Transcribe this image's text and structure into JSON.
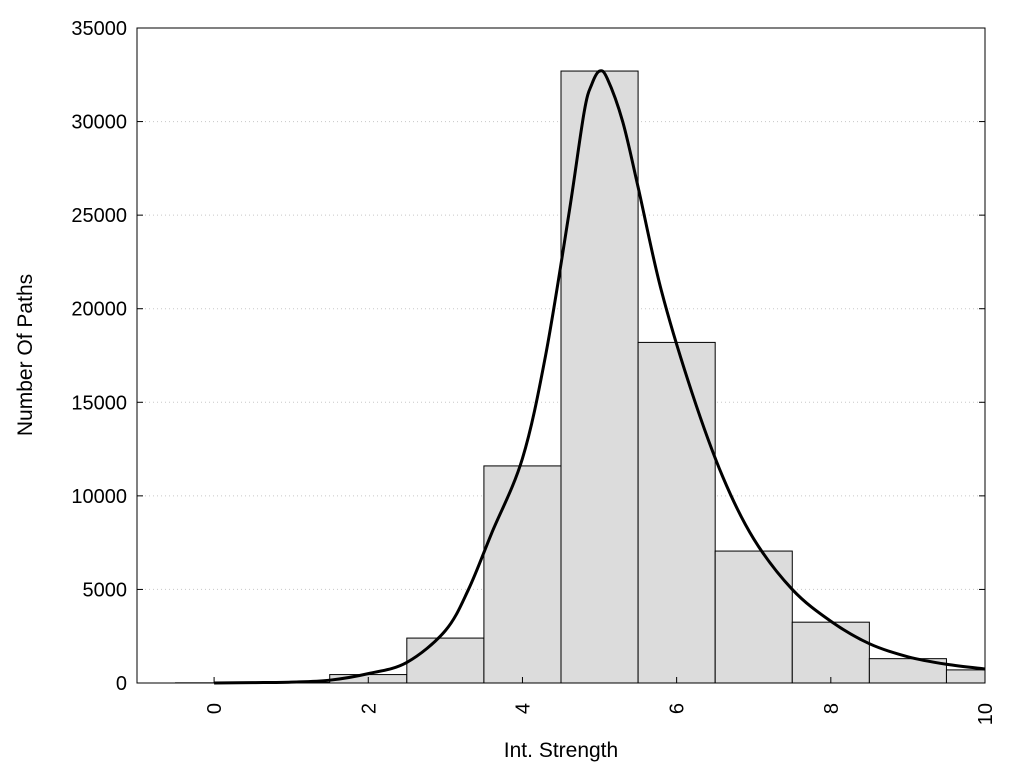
{
  "chart_data": {
    "type": "bar",
    "title": "",
    "xlabel": "Int. Strength",
    "ylabel": "Number Of Paths",
    "xlim": [
      -1,
      10
    ],
    "ylim": [
      0,
      35000
    ],
    "x_ticks": [
      0,
      2,
      4,
      6,
      8,
      10
    ],
    "y_ticks": [
      0,
      5000,
      10000,
      15000,
      20000,
      25000,
      30000,
      35000
    ],
    "grid": "horizontal-dotted",
    "legend": "none",
    "colors": {
      "bar_fill": "#dcdcdc",
      "bar_stroke": "#000000",
      "curve": "#000000",
      "grid": "#c8c8c8"
    },
    "bins": {
      "x": [
        0,
        1,
        2,
        3,
        4,
        5,
        6,
        7,
        8,
        9,
        10
      ],
      "values": [
        10,
        30,
        450,
        2400,
        11600,
        32700,
        18200,
        7050,
        3250,
        1300,
        700
      ]
    },
    "curve": {
      "x": [
        0,
        0.5,
        1,
        1.5,
        2,
        2.5,
        3,
        3.3,
        3.6,
        4,
        4.3,
        4.6,
        4.8,
        4.9,
        5,
        5.1,
        5.3,
        5.5,
        5.8,
        6.2,
        6.6,
        7,
        7.5,
        8,
        8.5,
        9,
        9.5,
        10
      ],
      "y": [
        0,
        20,
        50,
        150,
        500,
        1100,
        2800,
        5000,
        8000,
        12000,
        17500,
        25000,
        30500,
        32000,
        32700,
        32300,
        30000,
        26500,
        21000,
        15500,
        11000,
        7700,
        5000,
        3300,
        2100,
        1400,
        1000,
        750
      ]
    }
  }
}
